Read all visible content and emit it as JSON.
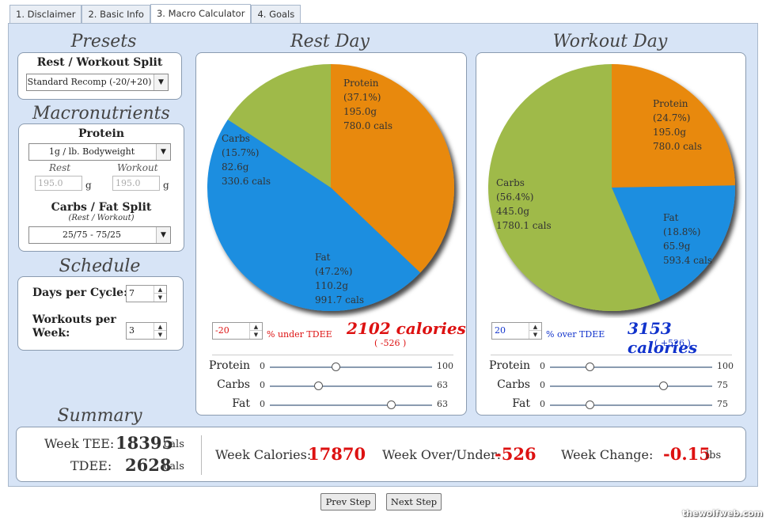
{
  "tabs": [
    "1. Disclaimer",
    "2. Basic Info",
    "3. Macro Calculator",
    "4. Goals"
  ],
  "presets": {
    "heading": "Presets",
    "split_label": "Rest / Workout Split",
    "split_value": "Standard Recomp (-20/+20)"
  },
  "macros": {
    "heading": "Macronutrients",
    "protein_label": "Protein",
    "protein_value": "1g / lb. Bodyweight",
    "rest_label": "Rest",
    "workout_label": "Workout",
    "rest_value": "195.0",
    "workout_value": "195.0",
    "unit": "g",
    "split_label": "Carbs / Fat Split",
    "split_sublabel": "(Rest / Workout)",
    "split_value": "25/75 - 75/25"
  },
  "schedule": {
    "heading": "Schedule",
    "days_label": "Days per Cycle:",
    "days_value": "7",
    "workouts_label_1": "Workouts per",
    "workouts_label_2": "Week:",
    "workouts_value": "3"
  },
  "rest_day": {
    "heading": "Rest Day",
    "slices": [
      {
        "name": "Protein",
        "pct": "(37.1%)",
        "grams": "195.0g",
        "cals": "780.0 cals",
        "value": 37.1,
        "color": "#e8890c"
      },
      {
        "name": "Fat",
        "pct": "(47.2%)",
        "grams": "110.2g",
        "cals": "991.7 cals",
        "value": 47.2,
        "color": "#1f8ee0"
      },
      {
        "name": "Carbs",
        "pct": "(15.7%)",
        "grams": "82.6g",
        "cals": "330.6 cals",
        "value": 15.7,
        "color": "#9fba4a"
      }
    ],
    "adjust_value": "-20",
    "adjust_label": "% under TDEE",
    "calories": "2102 calories",
    "delta": "( -526 )",
    "sliders": [
      {
        "name": "Protein",
        "min": "0",
        "max": "100",
        "level": 0.41
      },
      {
        "name": "Carbs",
        "min": "0",
        "max": "63",
        "level": 0.3
      },
      {
        "name": "Fat",
        "min": "0",
        "max": "63",
        "level": 0.75
      }
    ]
  },
  "workout_day": {
    "heading": "Workout Day",
    "slices": [
      {
        "name": "Protein",
        "pct": "(24.7%)",
        "grams": "195.0g",
        "cals": "780.0 cals",
        "value": 24.7,
        "color": "#e8890c"
      },
      {
        "name": "Fat",
        "pct": "(18.8%)",
        "grams": "65.9g",
        "cals": "593.4 cals",
        "value": 18.8,
        "color": "#1f8ee0"
      },
      {
        "name": "Carbs",
        "pct": "(56.4%)",
        "grams": "445.0g",
        "cals": "1780.1 cals",
        "value": 56.4,
        "color": "#9fba4a"
      }
    ],
    "adjust_value": "20",
    "adjust_label": "% over TDEE",
    "calories": "3153 calories",
    "delta": "( +526 )",
    "sliders": [
      {
        "name": "Protein",
        "min": "0",
        "max": "100",
        "level": 0.25
      },
      {
        "name": "Carbs",
        "min": "0",
        "max": "75",
        "level": 0.7
      },
      {
        "name": "Fat",
        "min": "0",
        "max": "75",
        "level": 0.25
      }
    ]
  },
  "summary": {
    "heading": "Summary",
    "week_tee_label": "Week TEE:",
    "week_tee_value": "18395",
    "tdee_label": "TDEE:",
    "tdee_value": "2628",
    "cals_unit": "cals",
    "week_calories_label": "Week Calories:",
    "week_calories_value": "17870",
    "over_under_label": "Week Over/Under:",
    "over_under_value": "-526",
    "change_label": "Week Change:",
    "change_value": "-0.15",
    "change_unit": "lbs"
  },
  "nav": {
    "prev": "Prev Step",
    "next": "Next Step"
  },
  "watermark": "thewolfweb.com",
  "colors": {
    "rest_red": "#dd1111",
    "workout_blue": "#1133cc",
    "protein": "#e8890c",
    "fat": "#1f8ee0",
    "carbs": "#9fba4a"
  }
}
